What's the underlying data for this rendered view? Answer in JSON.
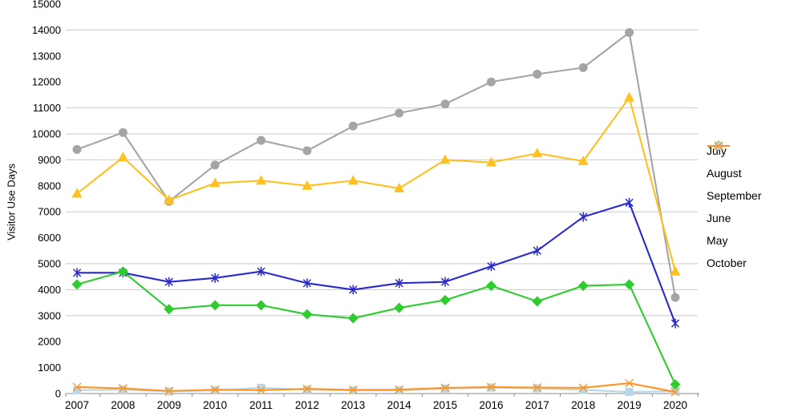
{
  "chart_data": {
    "type": "line",
    "title": "",
    "xlabel": "",
    "ylabel": "Visitor Use Days",
    "ylim": [
      0,
      15000
    ],
    "ytick_step": 1000,
    "y_ticks": [
      0,
      1000,
      2000,
      3000,
      4000,
      5000,
      6000,
      7000,
      8000,
      9000,
      10000,
      11000,
      12000,
      13000,
      14000,
      15000
    ],
    "gridline_values": [
      3000,
      4000,
      5000,
      7000,
      9000,
      10000,
      11000,
      14000
    ],
    "grid_color": "#c9c9c9",
    "axis_color": "#8c8c8c",
    "legend_position": "right",
    "x_categories": [
      "2007",
      "2008",
      "2009",
      "2010",
      "2011",
      "2012",
      "2013",
      "2014",
      "2015",
      "2016",
      "2017",
      "2018",
      "2019",
      "2020"
    ],
    "series": [
      {
        "name": "July",
        "color": "#a5a5a5",
        "marker": "circle",
        "values": [
          9400,
          10050,
          7400,
          8800,
          9750,
          9350,
          10300,
          10800,
          11150,
          12000,
          12300,
          12550,
          13900,
          3700
        ]
      },
      {
        "name": "August",
        "color": "#ffc022",
        "marker": "triangle",
        "values": [
          7700,
          9100,
          7450,
          8100,
          8200,
          8000,
          8200,
          7900,
          9000,
          8900,
          9250,
          8950,
          11400,
          4700
        ]
      },
      {
        "name": "September",
        "color": "#2a2acc",
        "marker": "asterisk",
        "values": [
          4650,
          4650,
          4300,
          4450,
          4700,
          4250,
          4000,
          4250,
          4300,
          4900,
          5500,
          6800,
          7350,
          2700
        ]
      },
      {
        "name": "June",
        "color": "#2ecc2e",
        "marker": "diamond",
        "values": [
          4200,
          4700,
          3250,
          3400,
          3400,
          3050,
          2900,
          3300,
          3600,
          4150,
          3550,
          4150,
          4200,
          350
        ]
      },
      {
        "name": "May",
        "color": "#b7d7e8",
        "marker": "square",
        "values": [
          130,
          150,
          80,
          120,
          220,
          150,
          120,
          120,
          190,
          230,
          200,
          140,
          60,
          90
        ]
      },
      {
        "name": "October",
        "color": "#ff9421",
        "marker": "xstar",
        "values": [
          250,
          200,
          100,
          150,
          130,
          180,
          140,
          150,
          220,
          250,
          230,
          220,
          400,
          60
        ]
      }
    ],
    "draw_order": [
      0,
      1,
      4,
      5,
      2,
      3
    ]
  }
}
